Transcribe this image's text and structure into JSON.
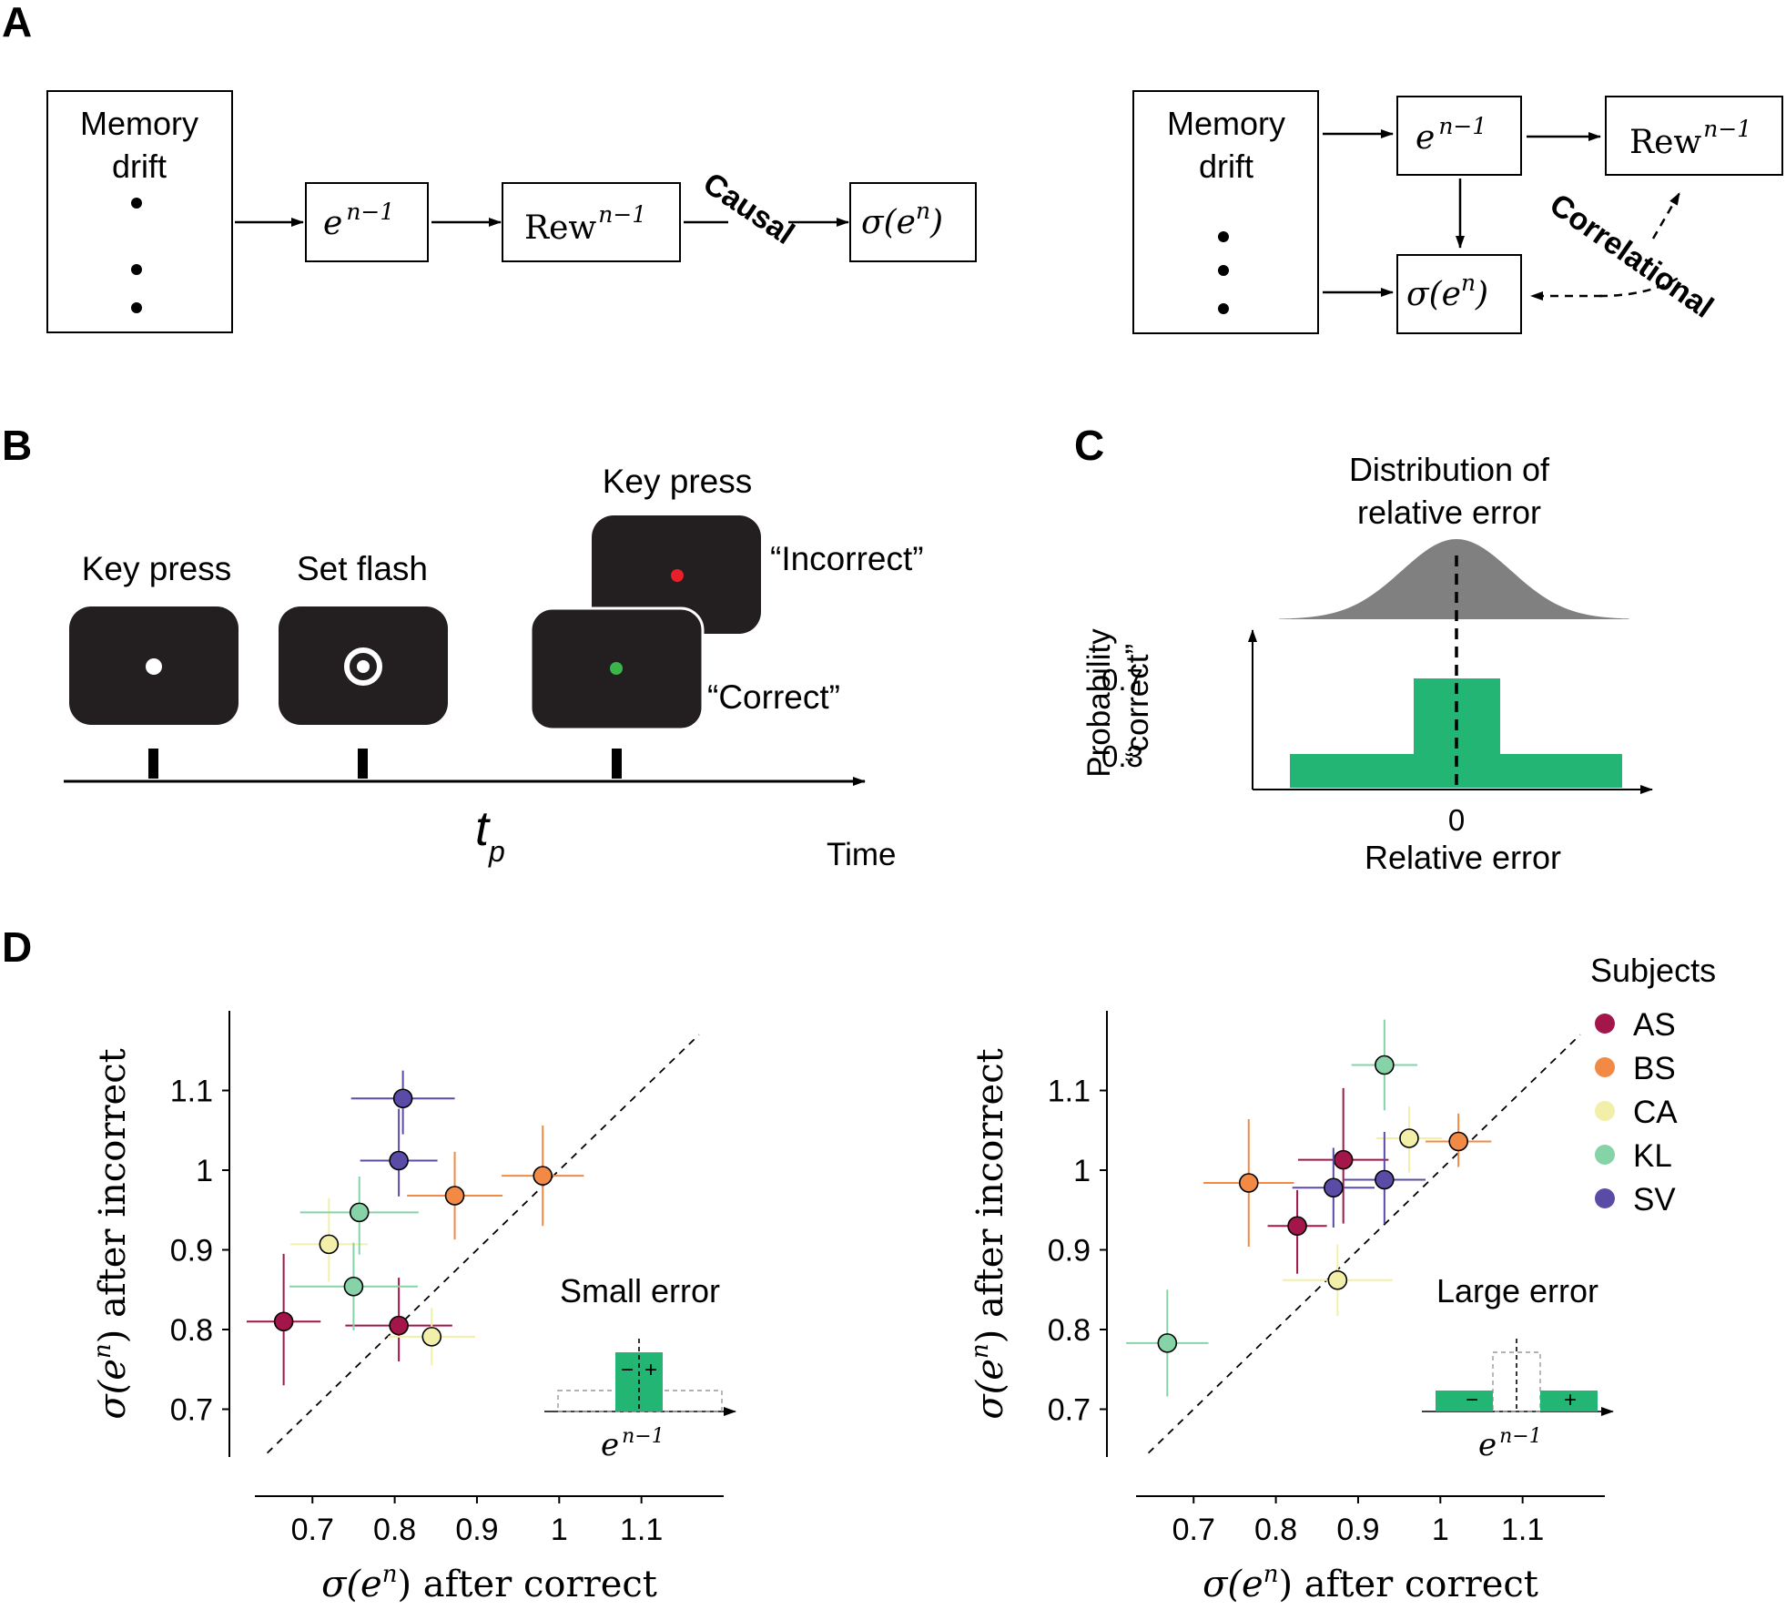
{
  "panels": {
    "A": "A",
    "B": "B",
    "C": "C",
    "D": "D"
  },
  "panel_a": {
    "memory_drift": [
      "Memory",
      "drift"
    ],
    "error_prev_base": "e",
    "error_prev_sup": "n−1",
    "reward_base": "Rew",
    "reward_sup": "n−1",
    "sigma_label": "σ(e",
    "sigma_sup": "n",
    "sigma_close": ")",
    "causal": "Causal",
    "correlational": "Correlational"
  },
  "panel_b": {
    "key_press_1": "Key press",
    "set_flash": "Set flash",
    "key_press_2": "Key press",
    "incorrect": "“Incorrect”",
    "correct": "“Correct”",
    "tp_base": "t",
    "tp_sub": "p",
    "time": "Time",
    "colors": {
      "screen": "#231f20",
      "incorrect_dot": "#e8202a",
      "correct_dot": "#39b54a"
    }
  },
  "panel_c": {
    "title_line1": "Distribution of",
    "title_line2": "relative error",
    "ylabel_line1": "Probability",
    "ylabel_line2": "“correct”",
    "ytick_hi": "0.7",
    "ytick_lo": "0.3",
    "xtick": "0",
    "xlabel": "Relative error",
    "colors": {
      "gaussian": "#808080",
      "bar": "#22b573"
    }
  },
  "panel_d": {
    "legend_title": "Subjects",
    "legend": [
      {
        "name": "AS",
        "color": "#a4164a"
      },
      {
        "name": "BS",
        "color": "#f28a45"
      },
      {
        "name": "CA",
        "color": "#f2f0a8"
      },
      {
        "name": "KL",
        "color": "#86d3a8"
      },
      {
        "name": "SV",
        "color": "#5a4ca6"
      }
    ],
    "xlabel": "σ(e) after correct",
    "ylabel": "σ(e) after incorrect",
    "xticks": [
      "0.7",
      "0.8",
      "0.9",
      "1",
      "1.1"
    ],
    "yticks": [
      "0.7",
      "0.8",
      "0.9",
      "1",
      "1.1"
    ],
    "inset_left": {
      "title": "Small error",
      "minus": "−",
      "plus": "+",
      "xlabel_base": "e",
      "xlabel_sup": "n−1"
    },
    "inset_right": {
      "title": "Large error",
      "minus": "−",
      "plus": "+",
      "xlabel_base": "e",
      "xlabel_sup": "n−1"
    }
  },
  "chart_data": [
    {
      "type": "scatter",
      "title": "",
      "xlabel": "σ(e) after correct",
      "ylabel": "σ(e) after incorrect",
      "xlim": [
        0.63,
        1.2
      ],
      "ylim": [
        0.64,
        1.2
      ],
      "series": [
        {
          "name": "AS",
          "points": [
            {
              "x": 0.665,
              "y": 0.81,
              "xerr": 0.045,
              "yerr_lo": 0.08,
              "yerr_hi": 0.085
            },
            {
              "x": 0.805,
              "y": 0.805,
              "xerr": 0.065,
              "yerr_lo": 0.045,
              "yerr_hi": 0.06
            }
          ]
        },
        {
          "name": "BS",
          "points": [
            {
              "x": 0.873,
              "y": 0.968,
              "xerr": 0.058,
              "yerr_lo": 0.055,
              "yerr_hi": 0.055
            },
            {
              "x": 0.98,
              "y": 0.993,
              "xerr": 0.05,
              "yerr_lo": 0.063,
              "yerr_hi": 0.063
            }
          ]
        },
        {
          "name": "CA",
          "points": [
            {
              "x": 0.72,
              "y": 0.907,
              "xerr": 0.047,
              "yerr_lo": 0.047,
              "yerr_hi": 0.058
            },
            {
              "x": 0.845,
              "y": 0.791,
              "xerr": 0.053,
              "yerr_lo": 0.036,
              "yerr_hi": 0.036
            }
          ]
        },
        {
          "name": "KL",
          "points": [
            {
              "x": 0.757,
              "y": 0.947,
              "xerr": 0.072,
              "yerr_lo": 0.053,
              "yerr_hi": 0.045
            },
            {
              "x": 0.75,
              "y": 0.854,
              "xerr": 0.078,
              "yerr_lo": 0.055,
              "yerr_hi": 0.055
            }
          ]
        },
        {
          "name": "SV",
          "points": [
            {
              "x": 0.81,
              "y": 1.09,
              "xerr": 0.063,
              "yerr_lo": 0.045,
              "yerr_hi": 0.035
            },
            {
              "x": 0.805,
              "y": 1.012,
              "xerr": 0.047,
              "yerr_lo": 0.045,
              "yerr_hi": 0.065
            }
          ]
        }
      ],
      "diagonal": true,
      "inset": "Small error"
    },
    {
      "type": "scatter",
      "title": "",
      "xlabel": "σ(e) after correct",
      "ylabel": "σ(e) after incorrect",
      "xlim": [
        0.63,
        1.2
      ],
      "ylim": [
        0.64,
        1.2
      ],
      "series": [
        {
          "name": "AS",
          "points": [
            {
              "x": 0.826,
              "y": 0.93,
              "xerr": 0.036,
              "yerr_lo": 0.06,
              "yerr_hi": 0.045
            },
            {
              "x": 0.882,
              "y": 1.013,
              "xerr": 0.055,
              "yerr_lo": 0.08,
              "yerr_hi": 0.09
            }
          ]
        },
        {
          "name": "BS",
          "points": [
            {
              "x": 0.767,
              "y": 0.984,
              "xerr": 0.055,
              "yerr_lo": 0.08,
              "yerr_hi": 0.08
            },
            {
              "x": 1.022,
              "y": 1.036,
              "xerr": 0.04,
              "yerr_lo": 0.032,
              "yerr_hi": 0.035
            }
          ]
        },
        {
          "name": "CA",
          "points": [
            {
              "x": 0.875,
              "y": 0.862,
              "xerr": 0.067,
              "yerr_lo": 0.045,
              "yerr_hi": 0.045
            },
            {
              "x": 0.962,
              "y": 1.04,
              "xerr": 0.04,
              "yerr_lo": 0.043,
              "yerr_hi": 0.04
            }
          ]
        },
        {
          "name": "KL",
          "points": [
            {
              "x": 0.668,
              "y": 0.783,
              "xerr": 0.05,
              "yerr_lo": 0.067,
              "yerr_hi": 0.067
            },
            {
              "x": 0.932,
              "y": 1.132,
              "xerr": 0.04,
              "yerr_lo": 0.057,
              "yerr_hi": 0.057
            }
          ]
        },
        {
          "name": "SV",
          "points": [
            {
              "x": 0.87,
              "y": 0.978,
              "xerr": 0.05,
              "yerr_lo": 0.05,
              "yerr_hi": 0.05
            },
            {
              "x": 0.932,
              "y": 0.988,
              "xerr": 0.05,
              "yerr_lo": 0.055,
              "yerr_hi": 0.06
            }
          ]
        }
      ],
      "diagonal": true,
      "inset": "Large error"
    }
  ]
}
